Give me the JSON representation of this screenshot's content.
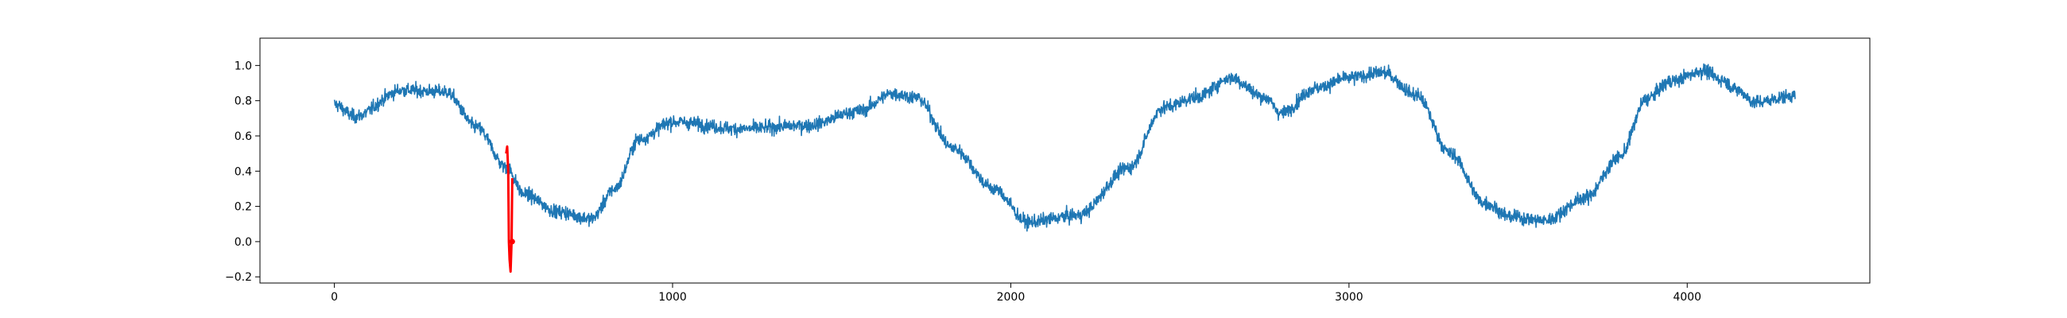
{
  "chart_data": {
    "type": "line",
    "title": "",
    "xlabel": "",
    "ylabel": "",
    "xlim": [
      -220,
      4540
    ],
    "ylim": [
      -0.235,
      1.155
    ],
    "grid": false,
    "x_ticks": [
      0,
      1000,
      2000,
      3000,
      4000
    ],
    "x_tick_labels": [
      "0",
      "1000",
      "2000",
      "3000",
      "4000"
    ],
    "y_ticks": [
      -0.2,
      0.0,
      0.2,
      0.4,
      0.6,
      0.8,
      1.0
    ],
    "y_tick_labels": [
      "−0.2",
      "0.0",
      "0.2",
      "0.4",
      "0.6",
      "0.8",
      "1.0"
    ],
    "series": [
      {
        "color": "#1f77b4",
        "n_points": 4321,
        "noise_amplitude": 0.04,
        "trend_x": [
          0,
          60,
          200,
          330,
          420,
          510,
          560,
          660,
          760,
          830,
          900,
          1000,
          1200,
          1400,
          1550,
          1650,
          1720,
          1830,
          1950,
          2050,
          2200,
          2350,
          2450,
          2550,
          2650,
          2750,
          2800,
          2900,
          3000,
          3100,
          3200,
          3300,
          3400,
          3480,
          3580,
          3700,
          3800,
          3880,
          3950,
          4050,
          4100,
          4150,
          4200,
          4320
        ],
        "trend_y": [
          0.78,
          0.71,
          0.86,
          0.85,
          0.65,
          0.42,
          0.27,
          0.17,
          0.13,
          0.3,
          0.58,
          0.68,
          0.64,
          0.66,
          0.74,
          0.84,
          0.82,
          0.53,
          0.3,
          0.11,
          0.15,
          0.42,
          0.76,
          0.82,
          0.93,
          0.82,
          0.73,
          0.87,
          0.93,
          0.96,
          0.83,
          0.5,
          0.22,
          0.14,
          0.12,
          0.25,
          0.48,
          0.81,
          0.91,
          0.97,
          0.92,
          0.86,
          0.79,
          0.83
        ]
      },
      {
        "color": "#ff0000",
        "x": [
          508,
          511,
          514,
          516,
          518,
          521,
          524,
          526
        ],
        "y": [
          0.5,
          0.54,
          0.4,
          0.0,
          -0.1,
          -0.17,
          0.0,
          0.36
        ]
      }
    ],
    "markers": [
      {
        "color": "#ff0000",
        "x": 526,
        "y": 0.0
      }
    ]
  }
}
